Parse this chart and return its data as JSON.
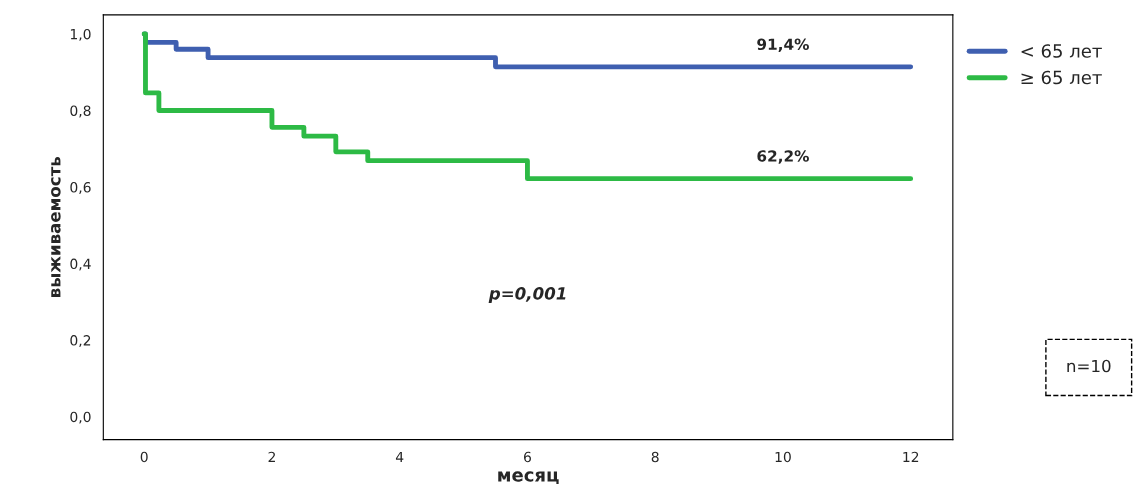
{
  "chart_data": {
    "type": "step",
    "xlabel": "месяц",
    "ylabel": "выживаемость",
    "xlim": [
      -0.64,
      12.66
    ],
    "ylim": [
      -0.06,
      1.05
    ],
    "xticks": [
      0,
      2,
      4,
      6,
      8,
      10,
      12
    ],
    "yticks": [
      {
        "value": 0.0,
        "label": "0,0"
      },
      {
        "value": 0.2,
        "label": "0,2"
      },
      {
        "value": 0.4,
        "label": "0,4"
      },
      {
        "value": 0.6,
        "label": "0,6"
      },
      {
        "value": 0.8,
        "label": "0,8"
      },
      {
        "value": 1.0,
        "label": "1,0"
      }
    ],
    "series": [
      {
        "name": "< 65 лет",
        "color": "#3f5fb0",
        "x": [
          0,
          0.02,
          0.5,
          1.0,
          5.5,
          12
        ],
        "values": [
          1.0,
          0.978,
          0.96,
          0.938,
          0.914,
          0.914
        ]
      },
      {
        "name": "≥ 65 лет",
        "color": "#2dba45",
        "x": [
          0,
          0.02,
          0.23,
          2.0,
          2.5,
          3.0,
          3.5,
          6.0,
          12
        ],
        "values": [
          1.0,
          0.846,
          0.8,
          0.756,
          0.733,
          0.692,
          0.669,
          0.622,
          0.622
        ]
      }
    ],
    "annotations": [
      {
        "text": "91,4%",
        "x": 10,
        "y": 0.914
      },
      {
        "text": "62,2%",
        "x": 10,
        "y": 0.622
      },
      "p=0,001",
      "n=10"
    ],
    "legend": "top right",
    "grid": false
  }
}
